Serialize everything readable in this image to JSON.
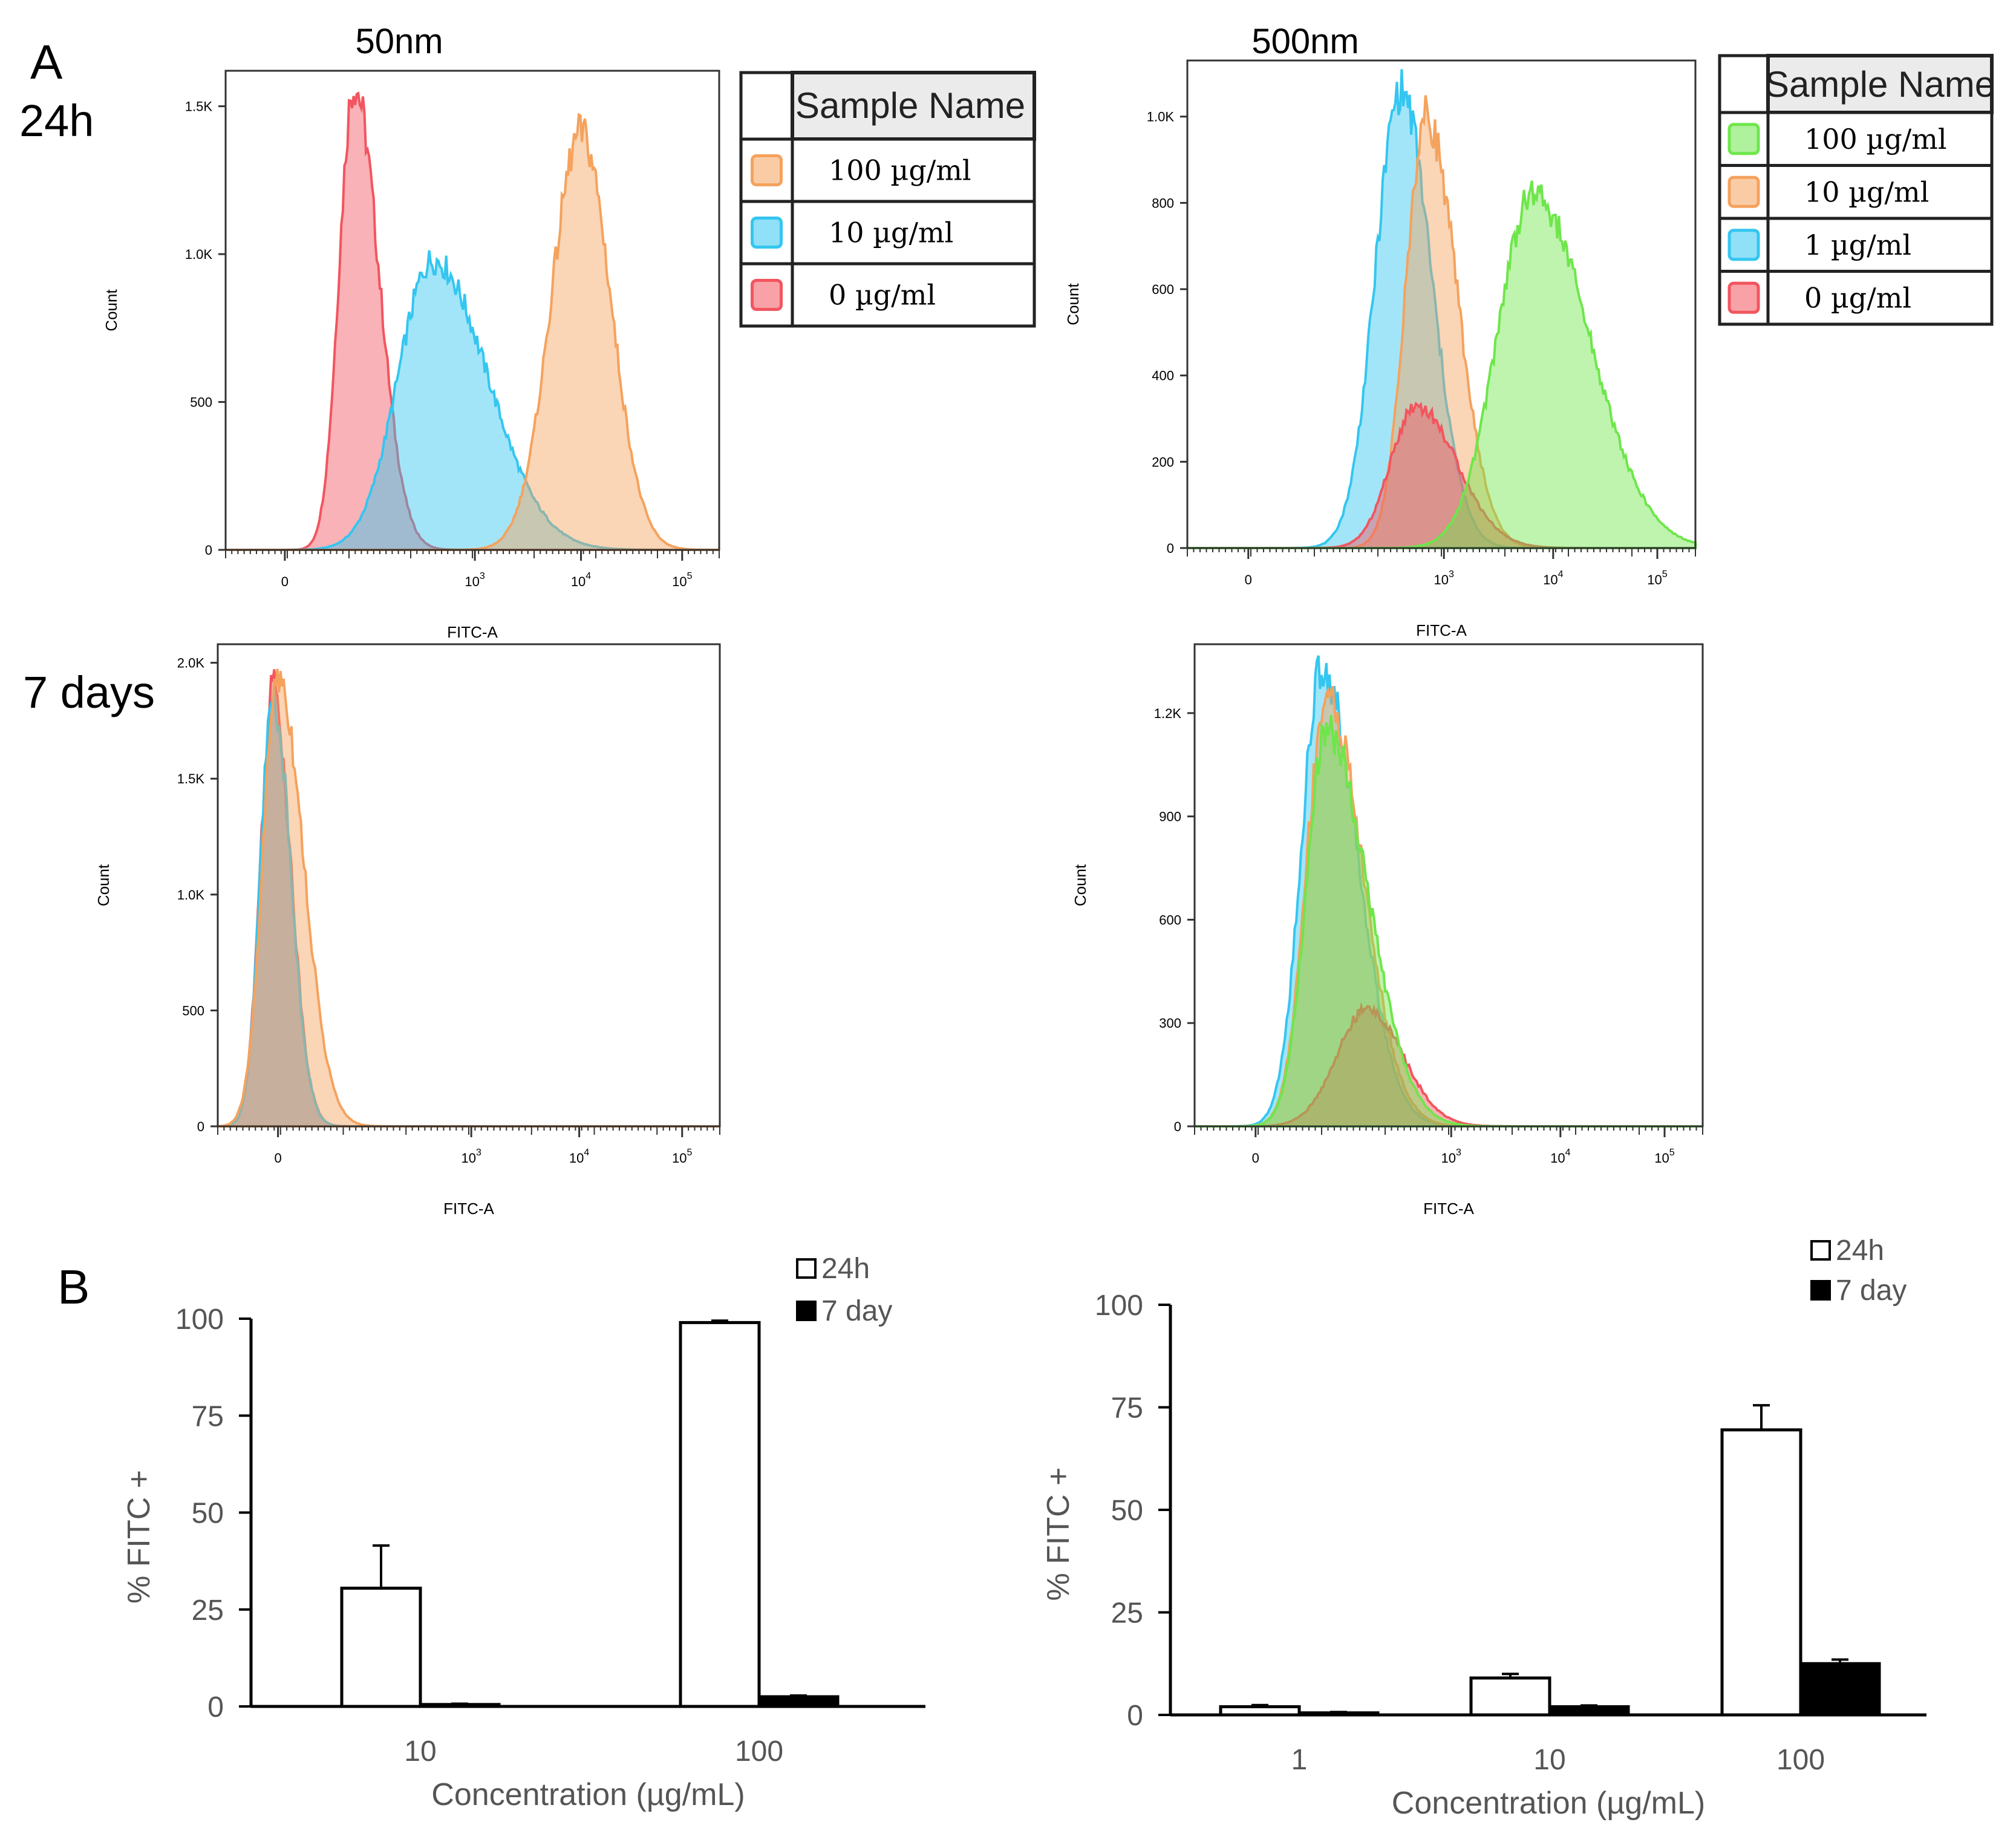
{
  "panel_a": {
    "letter": "A",
    "row_24h": "24h",
    "row_7d": "7 days",
    "col_50": "50nm",
    "col_500": "500nm",
    "legend_50": {
      "header": "Sample Name",
      "items": [
        {
          "label": "100 µg/ml",
          "color": "#f5a25d"
        },
        {
          "label": "10 µg/ml",
          "color": "#34c6f0"
        },
        {
          "label": "0 µg/ml",
          "color": "#f2555f"
        }
      ]
    },
    "legend_500": {
      "header": "Sample Name",
      "items": [
        {
          "label": "100 µg/ml",
          "color": "#6ee64b"
        },
        {
          "label": "10 µg/ml",
          "color": "#f5a25d"
        },
        {
          "label": "1 µg/ml",
          "color": "#34c6f0"
        },
        {
          "label": "0 µg/ml",
          "color": "#f2555f"
        }
      ]
    },
    "xlabel": "FITC-A",
    "ylabel": "Count"
  },
  "panel_b": {
    "letter": "B",
    "legend": [
      {
        "label": "24h",
        "color": "#ffffff"
      },
      {
        "label": "7 day",
        "color": "#000000"
      }
    ]
  },
  "chart_data": [
    {
      "id": "hist-50nm-24h",
      "type": "area",
      "title": "50nm",
      "xlabel": "FITC-A",
      "ylabel": "Count",
      "xtick_labels": [
        "0",
        "10^3",
        "10^4",
        "10^5"
      ],
      "ytick_labels": [
        "0",
        "500",
        "1.0K",
        "1.5K"
      ],
      "yticks": [
        0,
        500,
        1000,
        1500
      ],
      "ylim": [
        0,
        1620
      ],
      "series": [
        {
          "name": "0 µg/ml",
          "color": "#f2555f",
          "peak_x": 0.26,
          "peak": 1570,
          "sigma_l": 0.03,
          "sigma_r": 0.05
        },
        {
          "name": "10 µg/ml",
          "color": "#34c6f0",
          "peak_x": 0.42,
          "peak": 980,
          "sigma_l": 0.07,
          "sigma_r": 0.11
        },
        {
          "name": "100 µg/ml",
          "color": "#f5a25d",
          "peak_x": 0.72,
          "peak": 1410,
          "sigma_l": 0.06,
          "sigma_r": 0.06
        }
      ]
    },
    {
      "id": "hist-500nm-24h",
      "type": "area",
      "title": "500nm",
      "xlabel": "FITC-A",
      "ylabel": "Count",
      "xtick_labels": [
        "0",
        "10^3",
        "10^4",
        "10^5"
      ],
      "ytick_labels": [
        "0",
        "200",
        "400",
        "600",
        "800",
        "1.0K"
      ],
      "yticks": [
        0,
        200,
        400,
        600,
        800,
        1000
      ],
      "ylim": [
        0,
        1130
      ],
      "series": [
        {
          "name": "1 µg/ml",
          "color": "#34c6f0",
          "peak_x": 0.42,
          "peak": 1060,
          "sigma_l": 0.05,
          "sigma_r": 0.06
        },
        {
          "name": "10 µg/ml",
          "color": "#f5a25d",
          "peak_x": 0.47,
          "peak": 1000,
          "sigma_l": 0.04,
          "sigma_r": 0.06
        },
        {
          "name": "0 µg/ml",
          "color": "#f2555f",
          "peak_x": 0.45,
          "peak": 330,
          "sigma_l": 0.05,
          "sigma_r": 0.08
        },
        {
          "name": "100 µg/ml",
          "color": "#6ee64b",
          "peak_x": 0.68,
          "peak": 820,
          "sigma_l": 0.07,
          "sigma_r": 0.11
        }
      ]
    },
    {
      "id": "hist-50nm-7d",
      "type": "area",
      "title": "",
      "xlabel": "FITC-A",
      "ylabel": "Count",
      "xtick_labels": [
        "0",
        "10^3",
        "10^4",
        "10^5"
      ],
      "ytick_labels": [
        "0",
        "500",
        "1.0K",
        "1.5K",
        "2.0K"
      ],
      "yticks": [
        0,
        500,
        1000,
        1500,
        2000
      ],
      "ylim": [
        0,
        2080
      ],
      "series": [
        {
          "name": "0 µg/ml",
          "color": "#f2555f",
          "peak_x": 0.11,
          "peak": 1900,
          "sigma_l": 0.025,
          "sigma_r": 0.035
        },
        {
          "name": "10 µg/ml",
          "color": "#34c6f0",
          "peak_x": 0.11,
          "peak": 1850,
          "sigma_l": 0.025,
          "sigma_r": 0.035
        },
        {
          "name": "100 µg/ml",
          "color": "#f5a25d",
          "peak_x": 0.12,
          "peak": 1950,
          "sigma_l": 0.03,
          "sigma_r": 0.05
        }
      ]
    },
    {
      "id": "hist-500nm-7d",
      "type": "area",
      "title": "",
      "xlabel": "FITC-A",
      "ylabel": "Count",
      "xtick_labels": [
        "0",
        "10^3",
        "10^4",
        "10^5"
      ],
      "ytick_labels": [
        "0",
        "300",
        "600",
        "900",
        "1.2K"
      ],
      "yticks": [
        0,
        300,
        600,
        900,
        1200
      ],
      "ylim": [
        0,
        1400
      ],
      "series": [
        {
          "name": "1 µg/ml",
          "color": "#34c6f0",
          "peak_x": 0.25,
          "peak": 1330,
          "sigma_l": 0.04,
          "sigma_r": 0.07
        },
        {
          "name": "10 µg/ml",
          "color": "#f5a25d",
          "peak_x": 0.26,
          "peak": 1250,
          "sigma_l": 0.04,
          "sigma_r": 0.07
        },
        {
          "name": "0 µg/ml",
          "color": "#f2555f",
          "peak_x": 0.34,
          "peak": 340,
          "sigma_l": 0.06,
          "sigma_r": 0.07
        },
        {
          "name": "100 µg/ml",
          "color": "#6ee64b",
          "peak_x": 0.26,
          "peak": 1150,
          "sigma_l": 0.04,
          "sigma_r": 0.08
        }
      ]
    },
    {
      "id": "bar-50nm",
      "type": "bar",
      "title": "",
      "xlabel": "Concentration (µg/mL)",
      "ylabel": "% FITC +",
      "categories": [
        "10",
        "100"
      ],
      "ylim": [
        0,
        100
      ],
      "yticks": [
        "0",
        "25",
        "50",
        "75",
        "100"
      ],
      "series": [
        {
          "name": "24h",
          "values": [
            30.5,
            99
          ],
          "errors": [
            11,
            0.5
          ]
        },
        {
          "name": "7 day",
          "values": [
            0.5,
            2.5
          ],
          "errors": [
            0.2,
            0.3
          ]
        }
      ]
    },
    {
      "id": "bar-500nm",
      "type": "bar",
      "title": "",
      "xlabel": "Concentration (µg/mL)",
      "ylabel": "% FITC +",
      "categories": [
        "1",
        "10",
        "100"
      ],
      "ylim": [
        0,
        100
      ],
      "yticks": [
        "0",
        "25",
        "50",
        "75",
        "100"
      ],
      "series": [
        {
          "name": "24h",
          "values": [
            2,
            9,
            69.5
          ],
          "errors": [
            0.4,
            1,
            6
          ]
        },
        {
          "name": "7 day",
          "values": [
            0.5,
            2,
            12.5
          ],
          "errors": [
            0.2,
            0.3,
            1
          ]
        }
      ]
    }
  ]
}
